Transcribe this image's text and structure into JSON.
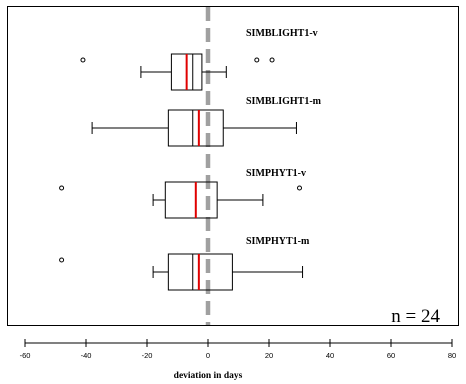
{
  "chart_data": {
    "type": "boxplot",
    "orientation": "horizontal",
    "xlabel": "deviation in days",
    "xlim": [
      -60,
      80
    ],
    "xticks": [
      "-60",
      "-40",
      "-20",
      "0",
      "20",
      "40",
      "60",
      "80"
    ],
    "reference_line_x": 0,
    "annotation": "n = 24",
    "grid": false,
    "series": [
      {
        "name": "SIMBLIGHT1-v",
        "whisker_low": -22,
        "q1": -12,
        "median": -5,
        "mean": -7,
        "q3": -2,
        "whisker_high": 6,
        "outliers": [
          -41,
          16,
          21
        ]
      },
      {
        "name": "SIMBLIGHT1-m",
        "whisker_low": -38,
        "q1": -13,
        "median": -5,
        "mean": -3,
        "q3": 5,
        "whisker_high": 29,
        "outliers": []
      },
      {
        "name": "SIMPHYT1-v",
        "whisker_low": -18,
        "q1": -14,
        "median": -4,
        "mean": -4,
        "q3": 3,
        "whisker_high": 18,
        "outliers": [
          -48,
          30
        ]
      },
      {
        "name": "SIMPHYT1-m",
        "whisker_low": -18,
        "q1": -13,
        "median": -5,
        "mean": -3,
        "q3": 8,
        "whisker_high": 31,
        "outliers": [
          -48
        ]
      }
    ],
    "colors": {
      "box": "#000000",
      "mean_line": "#e00000",
      "reference_line": "#a0a0a0",
      "outlier": "#000000"
    }
  }
}
